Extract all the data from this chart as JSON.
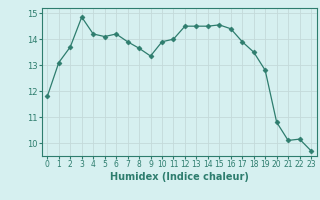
{
  "xlabel": "Humidex (Indice chaleur)",
  "x": [
    0,
    1,
    2,
    3,
    4,
    5,
    6,
    7,
    8,
    9,
    10,
    11,
    12,
    13,
    14,
    15,
    16,
    17,
    18,
    19,
    20,
    21,
    22,
    23
  ],
  "y": [
    11.8,
    13.1,
    13.7,
    14.85,
    14.2,
    14.1,
    14.2,
    13.9,
    13.65,
    13.35,
    13.9,
    14.0,
    14.5,
    14.5,
    14.5,
    14.55,
    14.4,
    13.9,
    13.5,
    12.8,
    10.8,
    10.1,
    10.15,
    9.7
  ],
  "line_color": "#2e7d6e",
  "marker": "D",
  "marker_size": 2.5,
  "bg_color": "#d6f0f0",
  "grid_color": "#c4dada",
  "tick_color": "#2e7d6e",
  "label_color": "#2e7d6e",
  "ylim": [
    9.5,
    15.2
  ],
  "yticks": [
    10,
    11,
    12,
    13,
    14,
    15
  ],
  "xlim": [
    -0.5,
    23.5
  ],
  "xticks": [
    0,
    1,
    2,
    3,
    4,
    5,
    6,
    7,
    8,
    9,
    10,
    11,
    12,
    13,
    14,
    15,
    16,
    17,
    18,
    19,
    20,
    21,
    22,
    23
  ]
}
